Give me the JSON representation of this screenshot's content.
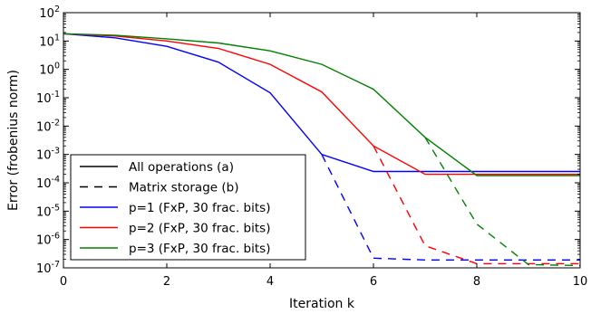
{
  "chart_data": {
    "type": "line",
    "title": "",
    "xlabel": "Iteration k",
    "ylabel": "Error (frobenius norm)",
    "xlim": [
      0,
      10
    ],
    "ylim": [
      1e-07,
      100
    ],
    "yscale": "log",
    "grid": false,
    "legend_position": "lower-left",
    "x_ticks": [
      0,
      2,
      4,
      6,
      8,
      10
    ],
    "x_tick_labels": [
      "0",
      "2",
      "4",
      "6",
      "8",
      "10"
    ],
    "y_tick_exponents": [
      -7,
      -6,
      -5,
      -4,
      -3,
      -2,
      -1,
      0,
      1,
      2
    ],
    "y_tick_labels": [
      "10",
      "10",
      "10",
      "10",
      "10",
      "10",
      "10",
      "10",
      "10",
      "10"
    ],
    "y_tick_label_exponents": [
      "-7",
      "-6",
      "-5",
      "-4",
      "-3",
      "-2",
      "-1",
      "0",
      "1",
      "2"
    ],
    "legend": [
      {
        "label": "All operations (a)",
        "color": "#000000",
        "dash": "solid"
      },
      {
        "label": "Matrix storage (b)",
        "color": "#000000",
        "dash": "dashed"
      },
      {
        "label": "p=1 (FxP, 30 frac. bits)",
        "color": "#0000ff",
        "dash": "solid"
      },
      {
        "label": "p=2 (FxP, 30 frac. bits)",
        "color": "#ff0000",
        "dash": "solid"
      },
      {
        "label": "p=3 (FxP, 30 frac. bits)",
        "color": "#008000",
        "dash": "solid"
      }
    ],
    "series": [
      {
        "color": "#0000ff",
        "dash": "solid",
        "x": [
          0,
          1,
          2,
          3,
          4,
          5,
          6,
          7,
          8,
          9,
          10
        ],
        "y": [
          18,
          13,
          6.5,
          1.8,
          0.15,
          0.001,
          0.00025,
          0.00025,
          0.00025,
          0.00025,
          0.00025
        ]
      },
      {
        "color": "#ff0000",
        "dash": "solid",
        "x": [
          0,
          1,
          2,
          3,
          4,
          5,
          6,
          7,
          8,
          9,
          10
        ],
        "y": [
          18,
          15,
          10,
          5.5,
          1.5,
          0.16,
          0.002,
          0.0002,
          0.0002,
          0.0002,
          0.0002
        ]
      },
      {
        "color": "#008000",
        "dash": "solid",
        "x": [
          0,
          1,
          2,
          3,
          4,
          5,
          6,
          7,
          8,
          9,
          10
        ],
        "y": [
          18,
          16,
          12,
          8.5,
          4.5,
          1.5,
          0.2,
          0.004,
          0.00018,
          0.00018,
          0.00018
        ]
      },
      {
        "color": "#0000ff",
        "dash": "dashed",
        "x": [
          5,
          6,
          7,
          8,
          9,
          10
        ],
        "y": [
          0.001,
          2.2e-07,
          1.9e-07,
          1.9e-07,
          1.9e-07,
          1.9e-07
        ]
      },
      {
        "color": "#ff0000",
        "dash": "dashed",
        "x": [
          6,
          7,
          8,
          9,
          10
        ],
        "y": [
          0.002,
          6e-07,
          1.4e-07,
          1.4e-07,
          1.4e-07
        ]
      },
      {
        "color": "#008000",
        "dash": "dashed",
        "x": [
          7,
          8,
          9,
          10
        ],
        "y": [
          0.004,
          3.5e-06,
          1.3e-07,
          1.2e-07
        ]
      }
    ]
  }
}
